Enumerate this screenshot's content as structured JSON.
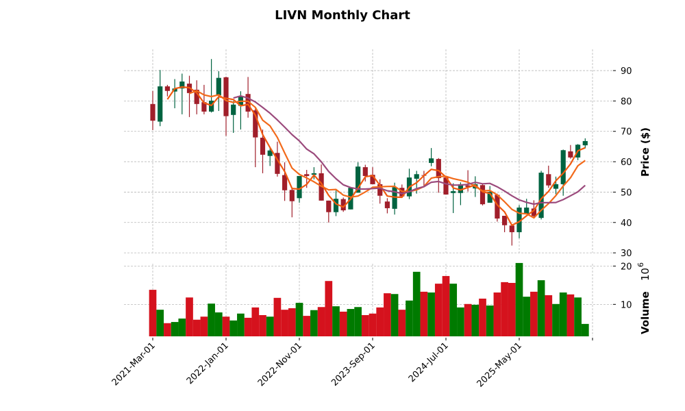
{
  "chart_data": {
    "type": "candlestick",
    "title": "LIVN Monthly Chart",
    "ylabel": "Price ($)",
    "volume_label": "Volume",
    "volume_exponent_base": "10",
    "volume_exponent": "6",
    "price_ylim": [
      28,
      97
    ],
    "price_ticks": [
      "30",
      "40",
      "50",
      "60",
      "70",
      "80",
      "90"
    ],
    "volume_ylim": [
      1.66,
      21.5
    ],
    "volume_ticks": [
      "10",
      "20"
    ],
    "x_tick_labels": [
      "2021-Mar-01",
      "2022-Jan-01",
      "2022-Nov-01",
      "2023-Sep-01",
      "2024-Jul-01",
      "2025-May-01",
      ""
    ],
    "x_tick_every": 10,
    "grid": true,
    "moving_averages": [
      3,
      6,
      12
    ],
    "colors": {
      "up_candle": "#006340",
      "down_candle": "#a01e2a",
      "up_volume": "#007a00",
      "down_volume": "#d5121d",
      "ma_colors": [
        "#f05a10",
        "#f26a1b",
        "#9b4a7c"
      ]
    },
    "ohlcv": [
      [
        79.0,
        83.3,
        70.4,
        73.5,
        13.8
      ],
      [
        73.2,
        90.2,
        71.7,
        84.8,
        8.6
      ],
      [
        84.8,
        85.3,
        81.5,
        83.3,
        5.1
      ],
      [
        83.1,
        87.2,
        77.6,
        84.1,
        5.4
      ],
      [
        84.1,
        89.0,
        75.6,
        86.4,
        6.3
      ],
      [
        85.7,
        88.3,
        74.7,
        82.6,
        11.8
      ],
      [
        83.7,
        86.8,
        75.6,
        79.0,
        6.0
      ],
      [
        79.6,
        85.3,
        75.6,
        76.5,
        6.8
      ],
      [
        76.5,
        93.8,
        76.2,
        80.1,
        10.2
      ],
      [
        81.9,
        89.8,
        76.7,
        87.6,
        7.9
      ],
      [
        87.8,
        88.0,
        68.5,
        75.0,
        6.8
      ],
      [
        75.4,
        80.0,
        69.5,
        78.8,
        5.8
      ],
      [
        78.4,
        83.2,
        70.6,
        81.4,
        7.6
      ],
      [
        82.3,
        87.9,
        74.5,
        76.5,
        6.5
      ],
      [
        76.9,
        77.5,
        58.2,
        68.0,
        9.2
      ],
      [
        67.9,
        70.6,
        56.2,
        62.3,
        7.2
      ],
      [
        61.9,
        64.5,
        58.6,
        63.7,
        6.8
      ],
      [
        62.9,
        66.6,
        55.1,
        56.0,
        11.7
      ],
      [
        55.6,
        59.8,
        47.1,
        50.6,
        8.6
      ],
      [
        50.7,
        51.5,
        41.7,
        47.0,
        9.0
      ],
      [
        48.0,
        55.3,
        46.5,
        55.3,
        10.4
      ],
      [
        55.9,
        57.3,
        51.4,
        55.3,
        7.0
      ],
      [
        55.7,
        58.2,
        54.2,
        56.2,
        8.5
      ],
      [
        56.2,
        59.1,
        47.2,
        47.2,
        9.3
      ],
      [
        47.2,
        47.2,
        40.0,
        43.4,
        16.1
      ],
      [
        43.4,
        50.5,
        42.1,
        47.8,
        9.5
      ],
      [
        47.7,
        48.2,
        43.5,
        44.0,
        8.1
      ],
      [
        44.3,
        51.4,
        44.3,
        51.4,
        8.8
      ],
      [
        49.8,
        59.8,
        49.8,
        58.4,
        9.3
      ],
      [
        58.2,
        59.0,
        53.5,
        55.3,
        7.2
      ],
      [
        55.7,
        58.2,
        52.6,
        52.6,
        7.6
      ],
      [
        52.6,
        54.2,
        46.2,
        48.8,
        9.2
      ],
      [
        46.9,
        48.0,
        43.0,
        44.7,
        12.9
      ],
      [
        44.5,
        53.1,
        42.6,
        51.6,
        12.7
      ],
      [
        51.4,
        52.5,
        48.6,
        48.6,
        8.6
      ],
      [
        48.6,
        57.7,
        47.7,
        54.8,
        11.0
      ],
      [
        54.4,
        57.0,
        49.5,
        55.9,
        18.5
      ],
      [
        55.6,
        57.0,
        52.1,
        55.5,
        13.3
      ],
      [
        59.6,
        64.5,
        58.5,
        61.1,
        13.1
      ],
      [
        60.9,
        61.2,
        49.8,
        54.6,
        15.4
      ],
      [
        54.8,
        55.3,
        49.2,
        49.2,
        17.4
      ],
      [
        49.7,
        52.9,
        43.1,
        50.3,
        15.4
      ],
      [
        49.7,
        53.2,
        45.7,
        52.6,
        9.2
      ],
      [
        52.2,
        57.2,
        50.2,
        51.7,
        10.1
      ],
      [
        51.2,
        55.2,
        48.4,
        52.6,
        9.9
      ],
      [
        52.3,
        52.6,
        45.6,
        46.0,
        11.5
      ],
      [
        46.5,
        52.0,
        46.5,
        50.1,
        9.7
      ],
      [
        49.1,
        49.5,
        40.3,
        41.3,
        13.1
      ],
      [
        42.2,
        42.2,
        36.8,
        39.1,
        15.8
      ],
      [
        39.0,
        39.4,
        32.4,
        36.8,
        15.6
      ],
      [
        36.8,
        45.7,
        34.8,
        44.9,
        20.8
      ],
      [
        42.7,
        47.8,
        42.7,
        44.9,
        12.0
      ],
      [
        44.6,
        47.3,
        41.8,
        42.1,
        13.3
      ],
      [
        41.5,
        57.0,
        41.0,
        56.4,
        16.3
      ],
      [
        55.9,
        58.7,
        51.4,
        52.2,
        12.4
      ],
      [
        51.1,
        55.1,
        49.3,
        52.6,
        10.1
      ],
      [
        52.6,
        64.0,
        48.8,
        63.8,
        13.1
      ],
      [
        63.4,
        65.5,
        61.0,
        61.4,
        12.6
      ],
      [
        61.4,
        65.8,
        60.5,
        65.6,
        11.8
      ],
      [
        65.4,
        67.7,
        64.4,
        66.8,
        4.9
      ]
    ]
  }
}
